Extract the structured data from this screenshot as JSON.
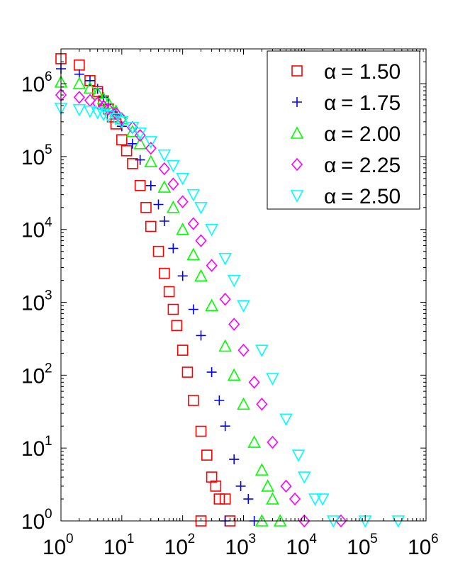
{
  "chart_data": {
    "type": "scatter",
    "x_scale": "log",
    "y_scale": "log",
    "xlim": [
      1,
      1000000
    ],
    "ylim": [
      1,
      3000000
    ],
    "grid": false,
    "legend_position": "top-right",
    "x_ticks": [
      {
        "value": 1,
        "base": "10",
        "exp": "0"
      },
      {
        "value": 10,
        "base": "10",
        "exp": "1"
      },
      {
        "value": 100,
        "base": "10",
        "exp": "2"
      },
      {
        "value": 1000,
        "base": "10",
        "exp": "3"
      },
      {
        "value": 10000,
        "base": "10",
        "exp": "4"
      },
      {
        "value": 100000,
        "base": "10",
        "exp": "5"
      },
      {
        "value": 1000000,
        "base": "10",
        "exp": "6"
      }
    ],
    "y_ticks": [
      {
        "value": 1,
        "base": "10",
        "exp": "0"
      },
      {
        "value": 10,
        "base": "10",
        "exp": "1"
      },
      {
        "value": 100,
        "base": "10",
        "exp": "2"
      },
      {
        "value": 1000,
        "base": "10",
        "exp": "3"
      },
      {
        "value": 10000,
        "base": "10",
        "exp": "4"
      },
      {
        "value": 100000,
        "base": "10",
        "exp": "5"
      },
      {
        "value": 1000000,
        "base": "10",
        "exp": "6"
      }
    ],
    "series": [
      {
        "name": "α = 1.50",
        "alpha_symbol": "α",
        "alpha_value": "= 1.50",
        "marker": "square",
        "color": "#ff0000",
        "points": [
          [
            1,
            2200000
          ],
          [
            2,
            1800000
          ],
          [
            3,
            1100000
          ],
          [
            4,
            780000
          ],
          [
            5,
            580000
          ],
          [
            6,
            450000
          ],
          [
            7,
            350000
          ],
          [
            8,
            280000
          ],
          [
            10,
            170000
          ],
          [
            12,
            120000
          ],
          [
            15,
            80000
          ],
          [
            20,
            40000
          ],
          [
            25,
            20000
          ],
          [
            30,
            11000
          ],
          [
            40,
            5000
          ],
          [
            50,
            2500
          ],
          [
            60,
            1400
          ],
          [
            70,
            800
          ],
          [
            80,
            480
          ],
          [
            100,
            220
          ],
          [
            120,
            110
          ],
          [
            150,
            45
          ],
          [
            200,
            17
          ],
          [
            250,
            8
          ],
          [
            300,
            4
          ],
          [
            350,
            3
          ],
          [
            400,
            2
          ],
          [
            500,
            2
          ],
          [
            200,
            1
          ],
          [
            600,
            1
          ]
        ]
      },
      {
        "name": "α = 1.75",
        "alpha_symbol": "α",
        "alpha_value": "= 1.75",
        "marker": "plus",
        "color": "#0000ff",
        "points": [
          [
            1,
            1600000
          ],
          [
            2,
            1350000
          ],
          [
            3,
            1100000
          ],
          [
            4,
            850000
          ],
          [
            5,
            650000
          ],
          [
            6,
            520000
          ],
          [
            8,
            380000
          ],
          [
            10,
            260000
          ],
          [
            15,
            150000
          ],
          [
            20,
            90000
          ],
          [
            30,
            40000
          ],
          [
            40,
            22000
          ],
          [
            50,
            13000
          ],
          [
            70,
            5500
          ],
          [
            100,
            2300
          ],
          [
            150,
            800
          ],
          [
            200,
            350
          ],
          [
            300,
            110
          ],
          [
            400,
            45
          ],
          [
            500,
            20
          ],
          [
            700,
            7
          ],
          [
            900,
            3
          ],
          [
            1200,
            2
          ],
          [
            500,
            1
          ],
          [
            1500,
            1
          ]
        ]
      },
      {
        "name": "α = 2.00",
        "alpha_symbol": "α",
        "alpha_value": "= 2.00",
        "marker": "triangle-up",
        "color": "#00ff00",
        "points": [
          [
            1,
            1050000
          ],
          [
            2,
            1000000
          ],
          [
            3,
            870000
          ],
          [
            4,
            740000
          ],
          [
            5,
            620000
          ],
          [
            6,
            540000
          ],
          [
            8,
            420000
          ],
          [
            10,
            330000
          ],
          [
            15,
            220000
          ],
          [
            20,
            150000
          ],
          [
            30,
            85000
          ],
          [
            50,
            38000
          ],
          [
            70,
            20000
          ],
          [
            100,
            10000
          ],
          [
            150,
            4500
          ],
          [
            200,
            2300
          ],
          [
            300,
            900
          ],
          [
            500,
            250
          ],
          [
            700,
            100
          ],
          [
            1000,
            40
          ],
          [
            1500,
            12
          ],
          [
            2000,
            5
          ],
          [
            2500,
            3
          ],
          [
            3000,
            2
          ],
          [
            2000,
            1
          ],
          [
            4000,
            1
          ]
        ]
      },
      {
        "name": "α = 2.25",
        "alpha_symbol": "α",
        "alpha_value": "= 2.25",
        "marker": "diamond",
        "color": "#ff00ff",
        "points": [
          [
            1,
            700000
          ],
          [
            2,
            650000
          ],
          [
            3,
            590000
          ],
          [
            4,
            540000
          ],
          [
            5,
            490000
          ],
          [
            6,
            450000
          ],
          [
            8,
            390000
          ],
          [
            10,
            330000
          ],
          [
            15,
            250000
          ],
          [
            20,
            195000
          ],
          [
            30,
            130000
          ],
          [
            50,
            68000
          ],
          [
            70,
            42000
          ],
          [
            100,
            24000
          ],
          [
            150,
            12000
          ],
          [
            200,
            7000
          ],
          [
            300,
            3200
          ],
          [
            500,
            1100
          ],
          [
            700,
            500
          ],
          [
            1000,
            220
          ],
          [
            1500,
            80
          ],
          [
            2000,
            40
          ],
          [
            3000,
            12
          ],
          [
            5000,
            3
          ],
          [
            7000,
            2
          ],
          [
            10000,
            1
          ],
          [
            40000,
            1
          ]
        ]
      },
      {
        "name": "α = 2.50",
        "alpha_symbol": "α",
        "alpha_value": "= 2.50",
        "marker": "triangle-down",
        "color": "#00ffff",
        "points": [
          [
            1,
            460000
          ],
          [
            2,
            440000
          ],
          [
            3,
            420000
          ],
          [
            4,
            400000
          ],
          [
            5,
            380000
          ],
          [
            6,
            360000
          ],
          [
            8,
            330000
          ],
          [
            10,
            300000
          ],
          [
            15,
            250000
          ],
          [
            20,
            210000
          ],
          [
            30,
            160000
          ],
          [
            50,
            105000
          ],
          [
            70,
            75000
          ],
          [
            100,
            50000
          ],
          [
            150,
            30000
          ],
          [
            200,
            20000
          ],
          [
            300,
            10000
          ],
          [
            500,
            4000
          ],
          [
            700,
            2000
          ],
          [
            1000,
            900
          ],
          [
            2000,
            220
          ],
          [
            3000,
            90
          ],
          [
            5000,
            25
          ],
          [
            8000,
            8
          ],
          [
            10000,
            4
          ],
          [
            15000,
            2
          ],
          [
            20000,
            2
          ],
          [
            30000,
            1
          ],
          [
            100000,
            1
          ],
          [
            350000,
            1
          ]
        ]
      }
    ]
  }
}
